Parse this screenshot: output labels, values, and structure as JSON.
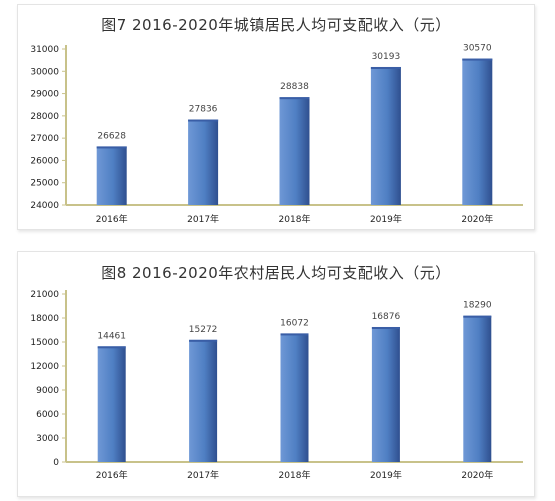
{
  "chart_data": [
    {
      "type": "bar",
      "title": "图7 2016-2020年城镇居民人均可支配收入（元）",
      "categories": [
        "2016年",
        "2017年",
        "2018年",
        "2019年",
        "2020年"
      ],
      "values": [
        26628,
        27836,
        28838,
        30193,
        30570
      ],
      "ylim": [
        24000,
        31000
      ],
      "yticks": [
        24000,
        25000,
        26000,
        27000,
        28000,
        29000,
        30000,
        31000
      ],
      "grid": false,
      "legend": "none"
    },
    {
      "type": "bar",
      "title": "图8 2016-2020年农村居民人均可支配收入（元）",
      "categories": [
        "2016年",
        "2017年",
        "2018年",
        "2019年",
        "2020年"
      ],
      "values": [
        14461,
        15272,
        16072,
        16876,
        18290
      ],
      "ylim": [
        0,
        21000
      ],
      "yticks": [
        0,
        3000,
        6000,
        9000,
        12000,
        15000,
        18000,
        21000
      ],
      "grid": false,
      "legend": "none"
    }
  ],
  "colors": {
    "bar_light": "#6f98d6",
    "bar_mid": "#4f7fc3",
    "bar_dark": "#2f4f8f",
    "axis": "#c8c28a"
  }
}
